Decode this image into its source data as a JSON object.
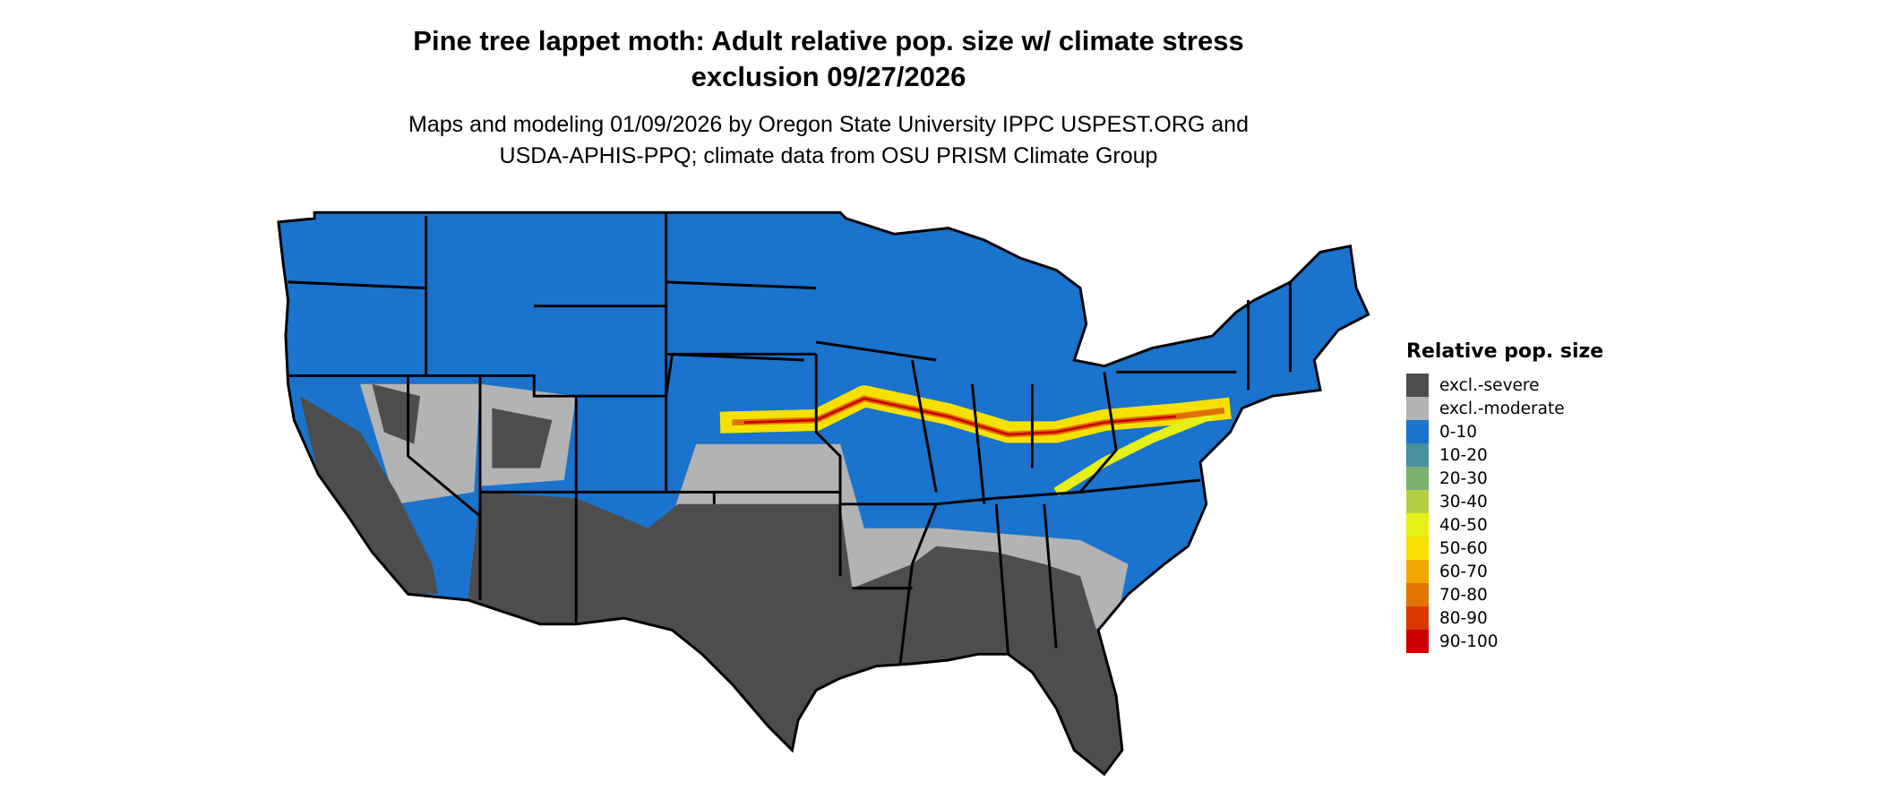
{
  "title": {
    "line1": "Pine tree lappet moth: Adult relative pop. size w/ climate stress",
    "line2": "exclusion 09/27/2026"
  },
  "subtitle": {
    "line1": "Maps and modeling 01/09/2026 by Oregon State University IPPC USPEST.ORG and",
    "line2": "USDA-APHIS-PPQ; climate data from OSU PRISM Climate Group"
  },
  "map": {
    "region": "Contiguous United States",
    "colors": {
      "border": "#000000",
      "excl_severe": "#4d4d4d",
      "excl_moderate": "#b3b3b3",
      "low": "#1a73cc",
      "band_mid": "#f5e000",
      "band_high": "#e07000",
      "band_top": "#cc0000"
    }
  },
  "legend": {
    "title": "Relative pop. size",
    "items": [
      {
        "label": "excl.-severe",
        "color": "#4d4d4d"
      },
      {
        "label": "excl.-moderate",
        "color": "#b3b3b3"
      },
      {
        "label": "0-10",
        "color": "#1a73cc"
      },
      {
        "label": "10-20",
        "color": "#4a919d"
      },
      {
        "label": "20-30",
        "color": "#7bb070"
      },
      {
        "label": "30-40",
        "color": "#b3d143"
      },
      {
        "label": "40-50",
        "color": "#e6ef16"
      },
      {
        "label": "50-60",
        "color": "#f9e000"
      },
      {
        "label": "60-70",
        "color": "#f0a800"
      },
      {
        "label": "70-80",
        "color": "#e37300"
      },
      {
        "label": "80-90",
        "color": "#dc3700"
      },
      {
        "label": "90-100",
        "color": "#cc0000"
      }
    ]
  }
}
